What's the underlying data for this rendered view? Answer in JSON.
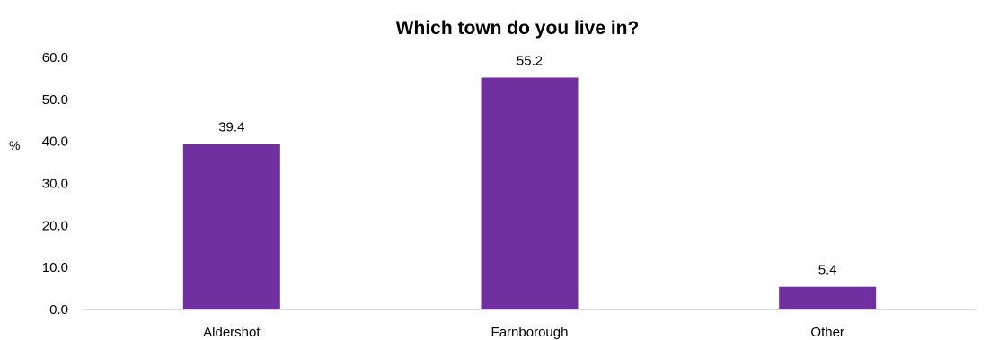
{
  "chart_data": {
    "type": "bar",
    "title": "Which town do you live in?",
    "ylabel": "%",
    "xlabel": "",
    "categories": [
      "Aldershot",
      "Farnborough",
      "Other"
    ],
    "values": [
      39.4,
      55.2,
      5.4
    ],
    "value_labels": [
      "39.4",
      "55.2",
      "5.4"
    ],
    "ylim": [
      0,
      60
    ],
    "yticks": [
      "0.0",
      "10.0",
      "20.0",
      "30.0",
      "40.0",
      "50.0",
      "60.0"
    ],
    "grid": false,
    "legend": "none",
    "bar_color": "#7030A0"
  }
}
